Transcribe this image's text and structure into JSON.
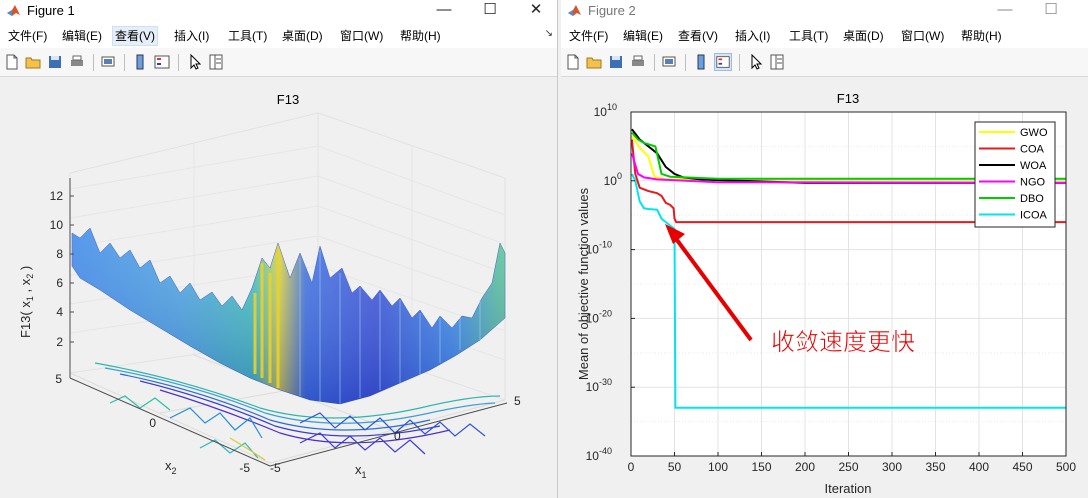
{
  "figure1": {
    "window_title": "Figure 1",
    "menus": [
      "文件(F)",
      "编辑(E)",
      "查看(V)",
      "插入(I)",
      "工具(T)",
      "桌面(D)",
      "窗口(W)",
      "帮助(H)"
    ],
    "menu_arrow": "↘",
    "plot": {
      "title": "F13",
      "zlabel": "F13( x",
      "zlabel_sub1": "1",
      "zlabel_mid": " , x",
      "zlabel_sub2": "2",
      "zlabel_end": " )",
      "x1_label": "x",
      "x1_sub": "1",
      "x2_label": "x",
      "x2_sub": "2",
      "z_ticks": [
        "2",
        "4",
        "6",
        "8",
        "10",
        "12"
      ],
      "x1_ticks": [
        "-5",
        "0",
        "5"
      ],
      "x2_ticks": [
        "5",
        "0",
        "-5"
      ]
    }
  },
  "figure2": {
    "window_title": "Figure 2",
    "menus": [
      "文件(F)",
      "编辑(E)",
      "查看(V)",
      "插入(I)",
      "工具(T)",
      "桌面(D)",
      "窗口(W)",
      "帮助(H)"
    ],
    "annotation": "收敛速度更快",
    "annotation_color": "#e60000",
    "chart_data": {
      "type": "line",
      "title": "F13",
      "xlabel": "Iteration",
      "ylabel": "Mean of objective function values",
      "xlim": [
        0,
        500
      ],
      "ylim": [
        1e-40,
        10000000000.0
      ],
      "yscale": "log",
      "grid": true,
      "legend_position": "top-right",
      "x_ticks": [
        "0",
        "50",
        "100",
        "150",
        "200",
        "250",
        "300",
        "350",
        "400",
        "450",
        "500"
      ],
      "y_ticks": [
        {
          "base": "10",
          "exp": "10",
          "value": 10
        },
        {
          "base": "10",
          "exp": "0",
          "value": 0
        },
        {
          "base": "10",
          "exp": "-10",
          "value": -10
        },
        {
          "base": "10",
          "exp": "-20",
          "value": -20
        },
        {
          "base": "10",
          "exp": "-30",
          "value": -30
        },
        {
          "base": "10",
          "exp": "-40",
          "value": -40
        }
      ],
      "series": [
        {
          "name": "GWO",
          "color": "#ffff00",
          "log10_points": [
            [
              1,
              6.5
            ],
            [
              10,
              4.8
            ],
            [
              20,
              3.5
            ],
            [
              27,
              0.6
            ],
            [
              40,
              0.2
            ],
            [
              100,
              0.2
            ],
            [
              500,
              0.2
            ]
          ]
        },
        {
          "name": "COA",
          "color": "#e41a1c",
          "log10_points": [
            [
              1,
              6
            ],
            [
              5,
              1
            ],
            [
              10,
              -1
            ],
            [
              20,
              -1.5
            ],
            [
              30,
              -1.8
            ],
            [
              35,
              -2.2
            ],
            [
              40,
              -3.2
            ],
            [
              45,
              -3.5
            ],
            [
              49,
              -4
            ],
            [
              50,
              -5.5
            ],
            [
              52,
              -6
            ],
            [
              500,
              -6
            ]
          ]
        },
        {
          "name": "WOA",
          "color": "#000000",
          "log10_points": [
            [
              1,
              7.5
            ],
            [
              10,
              6
            ],
            [
              20,
              5
            ],
            [
              30,
              4
            ],
            [
              40,
              2
            ],
            [
              50,
              1
            ],
            [
              60,
              0.5
            ],
            [
              80,
              0.2
            ],
            [
              100,
              0.1
            ],
            [
              200,
              -0.3
            ],
            [
              300,
              -0.3
            ],
            [
              500,
              -0.3
            ]
          ]
        },
        {
          "name": "NGO",
          "color": "#ff00ff",
          "log10_points": [
            [
              1,
              4
            ],
            [
              8,
              1
            ],
            [
              15,
              0.5
            ],
            [
              30,
              0.2
            ],
            [
              100,
              -0.2
            ],
            [
              500,
              -0.3
            ]
          ]
        },
        {
          "name": "DBO",
          "color": "#00cc00",
          "log10_points": [
            [
              1,
              7
            ],
            [
              8,
              6
            ],
            [
              15,
              5.5
            ],
            [
              28,
              5
            ],
            [
              35,
              1
            ],
            [
              45,
              0.6
            ],
            [
              100,
              0.3
            ],
            [
              500,
              0.3
            ]
          ]
        },
        {
          "name": "ICOA",
          "color": "#00e5ee",
          "log10_points": [
            [
              1,
              1
            ],
            [
              5,
              0
            ],
            [
              10,
              -3
            ],
            [
              15,
              -4
            ],
            [
              20,
              -4.1
            ],
            [
              30,
              -4.2
            ],
            [
              35,
              -5.5
            ],
            [
              40,
              -6
            ],
            [
              50,
              -7
            ],
            [
              51,
              -33
            ],
            [
              500,
              -33
            ]
          ]
        }
      ]
    }
  }
}
